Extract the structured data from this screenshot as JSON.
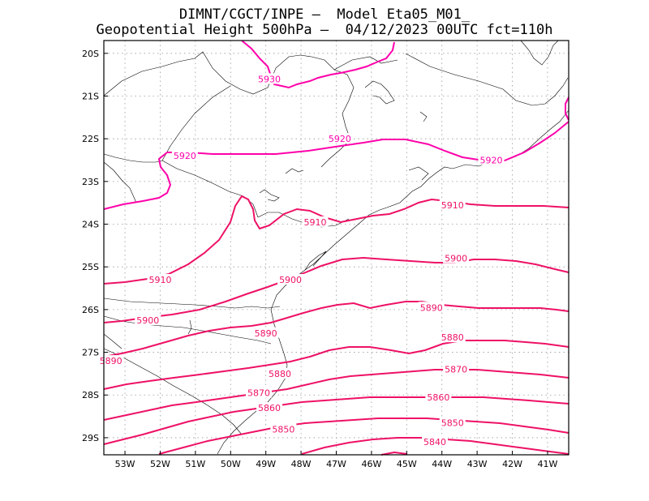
{
  "header": {
    "line1": "DIMNT/CGCT/INPE —  Model Eta05_M01_",
    "line2": "Geopotential Height 500hPa —  04/12/2023 00UTC fct=110h"
  },
  "map": {
    "lon_range": [
      -53.6,
      -40.4
    ],
    "lat_range": [
      -29.4,
      -19.7
    ],
    "lon_ticks": [
      "53W",
      "52W",
      "51W",
      "50W",
      "49W",
      "48W",
      "47W",
      "46W",
      "45W",
      "44W",
      "43W",
      "42W",
      "41W"
    ],
    "lat_ticks": [
      "20S",
      "21S",
      "22S",
      "23S",
      "24S",
      "25S",
      "26S",
      "27S",
      "28S",
      "29S"
    ],
    "contour_color": "#ee1166",
    "contour_color_high": "#ff00aa",
    "contour_labels": [
      {
        "text": "5930",
        "lon": -48.9,
        "lat": -20.6
      },
      {
        "text": "5920",
        "lon": -51.3,
        "lat": -22.4
      },
      {
        "text": "5920",
        "lon": -46.9,
        "lat": -22.0
      },
      {
        "text": "5920",
        "lon": -42.6,
        "lat": -22.5
      },
      {
        "text": "5910",
        "lon": -52.0,
        "lat": -25.3
      },
      {
        "text": "5910",
        "lon": -47.6,
        "lat": -23.95
      },
      {
        "text": "5910",
        "lon": -43.7,
        "lat": -23.55
      },
      {
        "text": "5900",
        "lon": -52.35,
        "lat": -26.25
      },
      {
        "text": "5900",
        "lon": -48.3,
        "lat": -25.3
      },
      {
        "text": "5900",
        "lon": -43.6,
        "lat": -24.8
      },
      {
        "text": "5890",
        "lon": -53.4,
        "lat": -27.2
      },
      {
        "text": "5890",
        "lon": -49.0,
        "lat": -26.55
      },
      {
        "text": "5890",
        "lon": -44.3,
        "lat": -25.95
      },
      {
        "text": "5880",
        "lon": -48.6,
        "lat": -27.5
      },
      {
        "text": "5880",
        "lon": -43.7,
        "lat": -26.65
      },
      {
        "text": "5870",
        "lon": -49.2,
        "lat": -27.95
      },
      {
        "text": "5870",
        "lon": -43.6,
        "lat": -27.4
      },
      {
        "text": "5860",
        "lon": -48.9,
        "lat": -28.3
      },
      {
        "text": "5860",
        "lon": -44.1,
        "lat": -28.05
      },
      {
        "text": "5850",
        "lon": -48.5,
        "lat": -28.8
      },
      {
        "text": "5850",
        "lon": -43.7,
        "lat": -28.65
      },
      {
        "text": "5840",
        "lon": -44.2,
        "lat": -29.1
      }
    ]
  }
}
